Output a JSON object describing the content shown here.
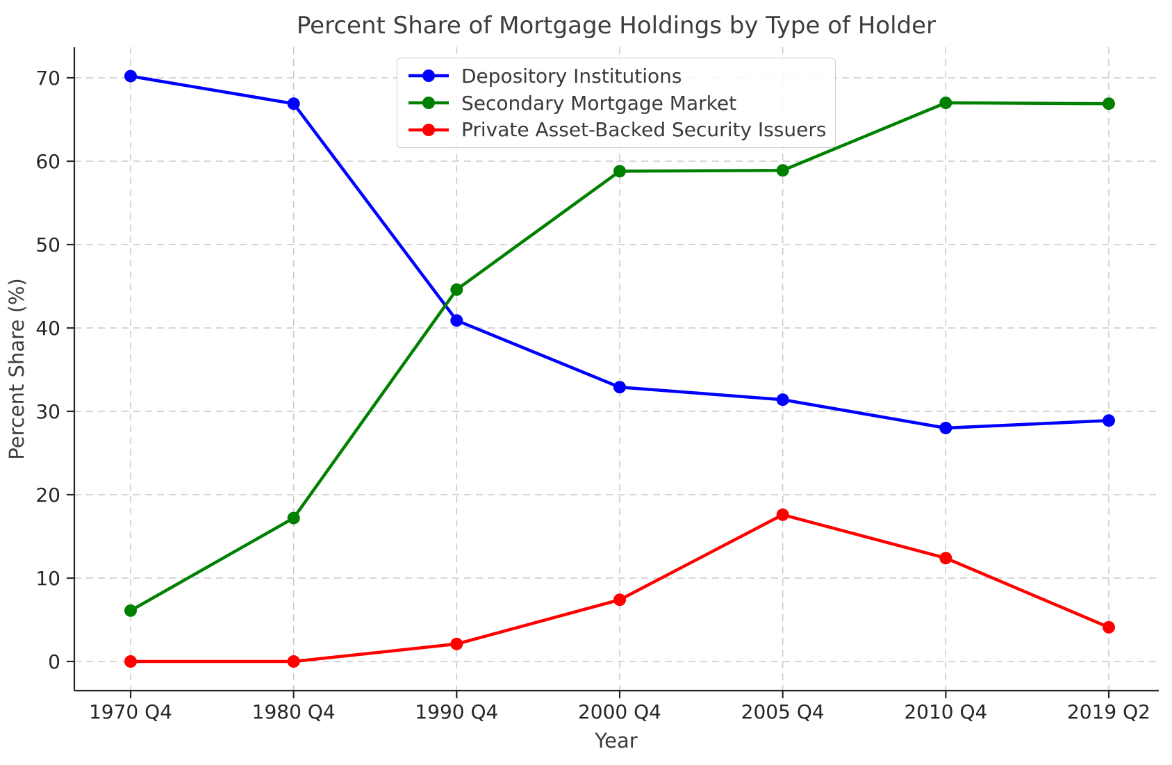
{
  "chart_data": {
    "type": "line",
    "title": "Percent Share of Mortgage Holdings by Type of Holder",
    "xlabel": "Year",
    "ylabel": "Percent Share (%)",
    "categories": [
      "1970 Q4",
      "1980 Q4",
      "1990 Q4",
      "2000 Q4",
      "2005 Q4",
      "2010 Q4",
      "2019 Q2"
    ],
    "series": [
      {
        "name": "Depository Institutions",
        "color": "#0000ff",
        "values": [
          70.2,
          66.9,
          40.9,
          32.9,
          31.4,
          28.0,
          28.9
        ]
      },
      {
        "name": "Secondary Mortgage Market",
        "color": "#008000",
        "values": [
          6.1,
          17.2,
          44.6,
          58.8,
          58.9,
          67.0,
          66.9
        ]
      },
      {
        "name": "Private Asset-Backed Security Issuers",
        "color": "#ff0000",
        "values": [
          0.0,
          0.0,
          2.1,
          7.4,
          17.6,
          12.4,
          4.1
        ]
      }
    ],
    "yticks": [
      0,
      10,
      20,
      30,
      40,
      50,
      60,
      70
    ],
    "ylim": [
      -3.5,
      73.7
    ],
    "grid": true,
    "grid_style": "dashed",
    "legend_position": "upper-center",
    "marker": "circle"
  },
  "colors": {
    "grid": "#c9c9c9",
    "axis": "#262626",
    "tick_label": "#262626",
    "text": "#3d3d3d",
    "legend_border": "#cccccc"
  }
}
